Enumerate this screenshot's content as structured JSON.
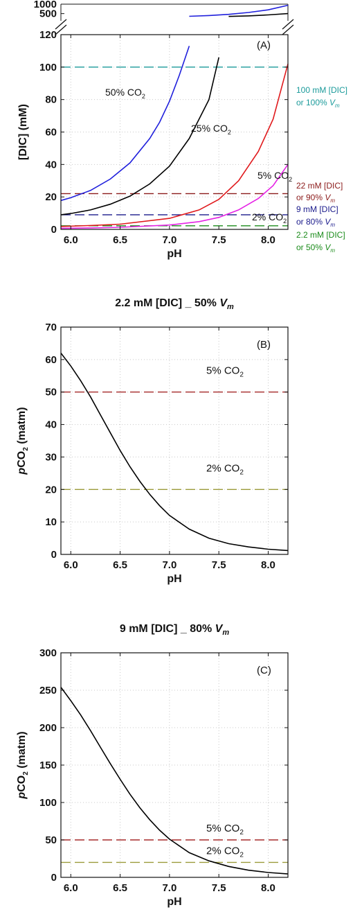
{
  "chart_data": [
    {
      "type": "line",
      "panel_label": "(A)",
      "title": "",
      "xlabel": "pH",
      "ylabel": "[DIC] (mM)",
      "xlim": [
        5.9,
        8.2
      ],
      "ylim": [
        0,
        120
      ],
      "ylim_upper_broken": [
        120,
        1000
      ],
      "x_ticks": [
        "6.0",
        "6.5",
        "7.0",
        "7.5",
        "8.0"
      ],
      "y_ticks": [
        "0",
        "20",
        "40",
        "60",
        "80",
        "100",
        "120"
      ],
      "y_ticks_upper": [
        "500",
        "1000"
      ],
      "grid": true,
      "series": [
        {
          "label": "50% CO2",
          "color": "#1f1fdc",
          "x": [
            5.9,
            6.0,
            6.2,
            6.4,
            6.6,
            6.8,
            6.9,
            7.0,
            7.1,
            7.2
          ],
          "y": [
            17.8,
            19.5,
            24.0,
            31.0,
            41.0,
            56.0,
            66.0,
            79.0,
            95.0,
            113.0
          ],
          "upper_x": [
            7.2,
            7.4,
            7.6,
            7.8,
            8.0,
            8.2
          ],
          "upper_y": [
            360,
            400,
            460,
            560,
            700,
            940
          ]
        },
        {
          "label": "25% CO2",
          "color": "#000000",
          "x": [
            5.9,
            6.0,
            6.2,
            6.4,
            6.6,
            6.8,
            7.0,
            7.2,
            7.4,
            7.5
          ],
          "y": [
            9.0,
            9.8,
            12.0,
            15.5,
            20.5,
            28.0,
            39.0,
            56.0,
            80.0,
            106.0
          ],
          "upper_x": [
            7.6,
            7.8,
            8.0,
            8.2
          ],
          "upper_y": [
            350,
            380,
            430,
            500
          ]
        },
        {
          "label": "5% CO2",
          "color": "#e0191c",
          "x": [
            5.9,
            6.2,
            6.5,
            7.0,
            7.3,
            7.5,
            7.7,
            7.9,
            8.05,
            8.2
          ],
          "y": [
            1.8,
            2.4,
            3.2,
            6.8,
            12.0,
            18.5,
            30.0,
            48.0,
            68.0,
            102.0
          ]
        },
        {
          "label": "2% CO2",
          "color": "#e522e5",
          "x": [
            5.9,
            6.2,
            6.5,
            7.0,
            7.3,
            7.5,
            7.7,
            7.9,
            8.05,
            8.2
          ],
          "y": [
            0.7,
            0.9,
            1.3,
            2.7,
            4.8,
            7.4,
            12.0,
            19.0,
            27.0,
            40.0
          ]
        }
      ],
      "reference_lines": [
        {
          "y": 100,
          "color": "#1a9a9a",
          "label_lines": [
            "100 mM [DIC]",
            "or 100% "
          ],
          "vm": true
        },
        {
          "y": 22,
          "color": "#8b1a1a",
          "label_lines": [
            "22 mM [DIC]",
            "or 90% "
          ],
          "vm": true
        },
        {
          "y": 9,
          "color": "#1a1a8b",
          "label_lines": [
            "9 mM [DIC]",
            "or 80% "
          ],
          "vm": true
        },
        {
          "y": 2.2,
          "color": "#1a8b1a",
          "label_lines": [
            "2.2 mM [DIC]",
            "or 50% "
          ],
          "vm": true
        }
      ],
      "vm_symbol": "V",
      "vm_sub": "m"
    },
    {
      "type": "line",
      "panel_label": "(B)",
      "title_main": "2.2 mM [DIC] _ 50% ",
      "title_v": "V",
      "title_sub": "m",
      "xlabel": "pH",
      "ylabel_p": "p",
      "ylabel_rest": "CO",
      "ylabel_sub": "2",
      "ylabel_units": " (matm)",
      "xlim": [
        5.9,
        8.2
      ],
      "ylim": [
        0,
        70
      ],
      "x_ticks": [
        "6.0",
        "6.5",
        "7.0",
        "7.5",
        "8.0"
      ],
      "y_ticks": [
        "0",
        "10",
        "20",
        "30",
        "40",
        "50",
        "60",
        "70"
      ],
      "grid": true,
      "series": [
        {
          "color": "#000000",
          "x": [
            5.9,
            6.0,
            6.1,
            6.2,
            6.3,
            6.4,
            6.5,
            6.6,
            6.7,
            6.8,
            6.9,
            7.0,
            7.2,
            7.4,
            7.6,
            7.8,
            8.0,
            8.2
          ],
          "y": [
            62.0,
            58.0,
            53.5,
            48.5,
            43.0,
            37.5,
            32.0,
            27.0,
            22.5,
            18.5,
            15.0,
            12.0,
            7.8,
            5.0,
            3.3,
            2.3,
            1.6,
            1.2
          ]
        }
      ],
      "reference_lines": [
        {
          "y": 50,
          "color": "#a52a2a",
          "label_main": "5% CO",
          "label_sub": "2"
        },
        {
          "y": 20,
          "color": "#9a9a3a",
          "label_main": "2% CO",
          "label_sub": "2"
        }
      ]
    },
    {
      "type": "line",
      "panel_label": "(C)",
      "title_main": "9 mM [DIC] _ 80% ",
      "title_v": "V",
      "title_sub": "m",
      "xlabel": "pH",
      "ylabel_p": "p",
      "ylabel_rest": "CO",
      "ylabel_sub": "2",
      "ylabel_units": " (matm)",
      "xlim": [
        5.9,
        8.2
      ],
      "ylim": [
        0,
        300
      ],
      "x_ticks": [
        "6.0",
        "6.5",
        "7.0",
        "7.5",
        "8.0"
      ],
      "y_ticks": [
        "0",
        "50",
        "100",
        "150",
        "200",
        "250",
        "300"
      ],
      "grid": true,
      "series": [
        {
          "color": "#000000",
          "x": [
            5.9,
            6.0,
            6.1,
            6.2,
            6.3,
            6.4,
            6.5,
            6.6,
            6.7,
            6.8,
            6.9,
            7.0,
            7.2,
            7.4,
            7.6,
            7.8,
            8.0,
            8.2
          ],
          "y": [
            254,
            236,
            217,
            196,
            174,
            152,
            131,
            111,
            93,
            77,
            63,
            51,
            33,
            22,
            14.5,
            9.5,
            6.5,
            4.5
          ]
        }
      ],
      "reference_lines": [
        {
          "y": 50,
          "color": "#a52a2a",
          "label_main": "5% CO",
          "label_sub": "2"
        },
        {
          "y": 20,
          "color": "#9a9a3a",
          "label_main": "2% CO",
          "label_sub": "2"
        }
      ]
    }
  ],
  "texts": {
    "co2_word": "CO",
    "co2_sub": "2"
  }
}
